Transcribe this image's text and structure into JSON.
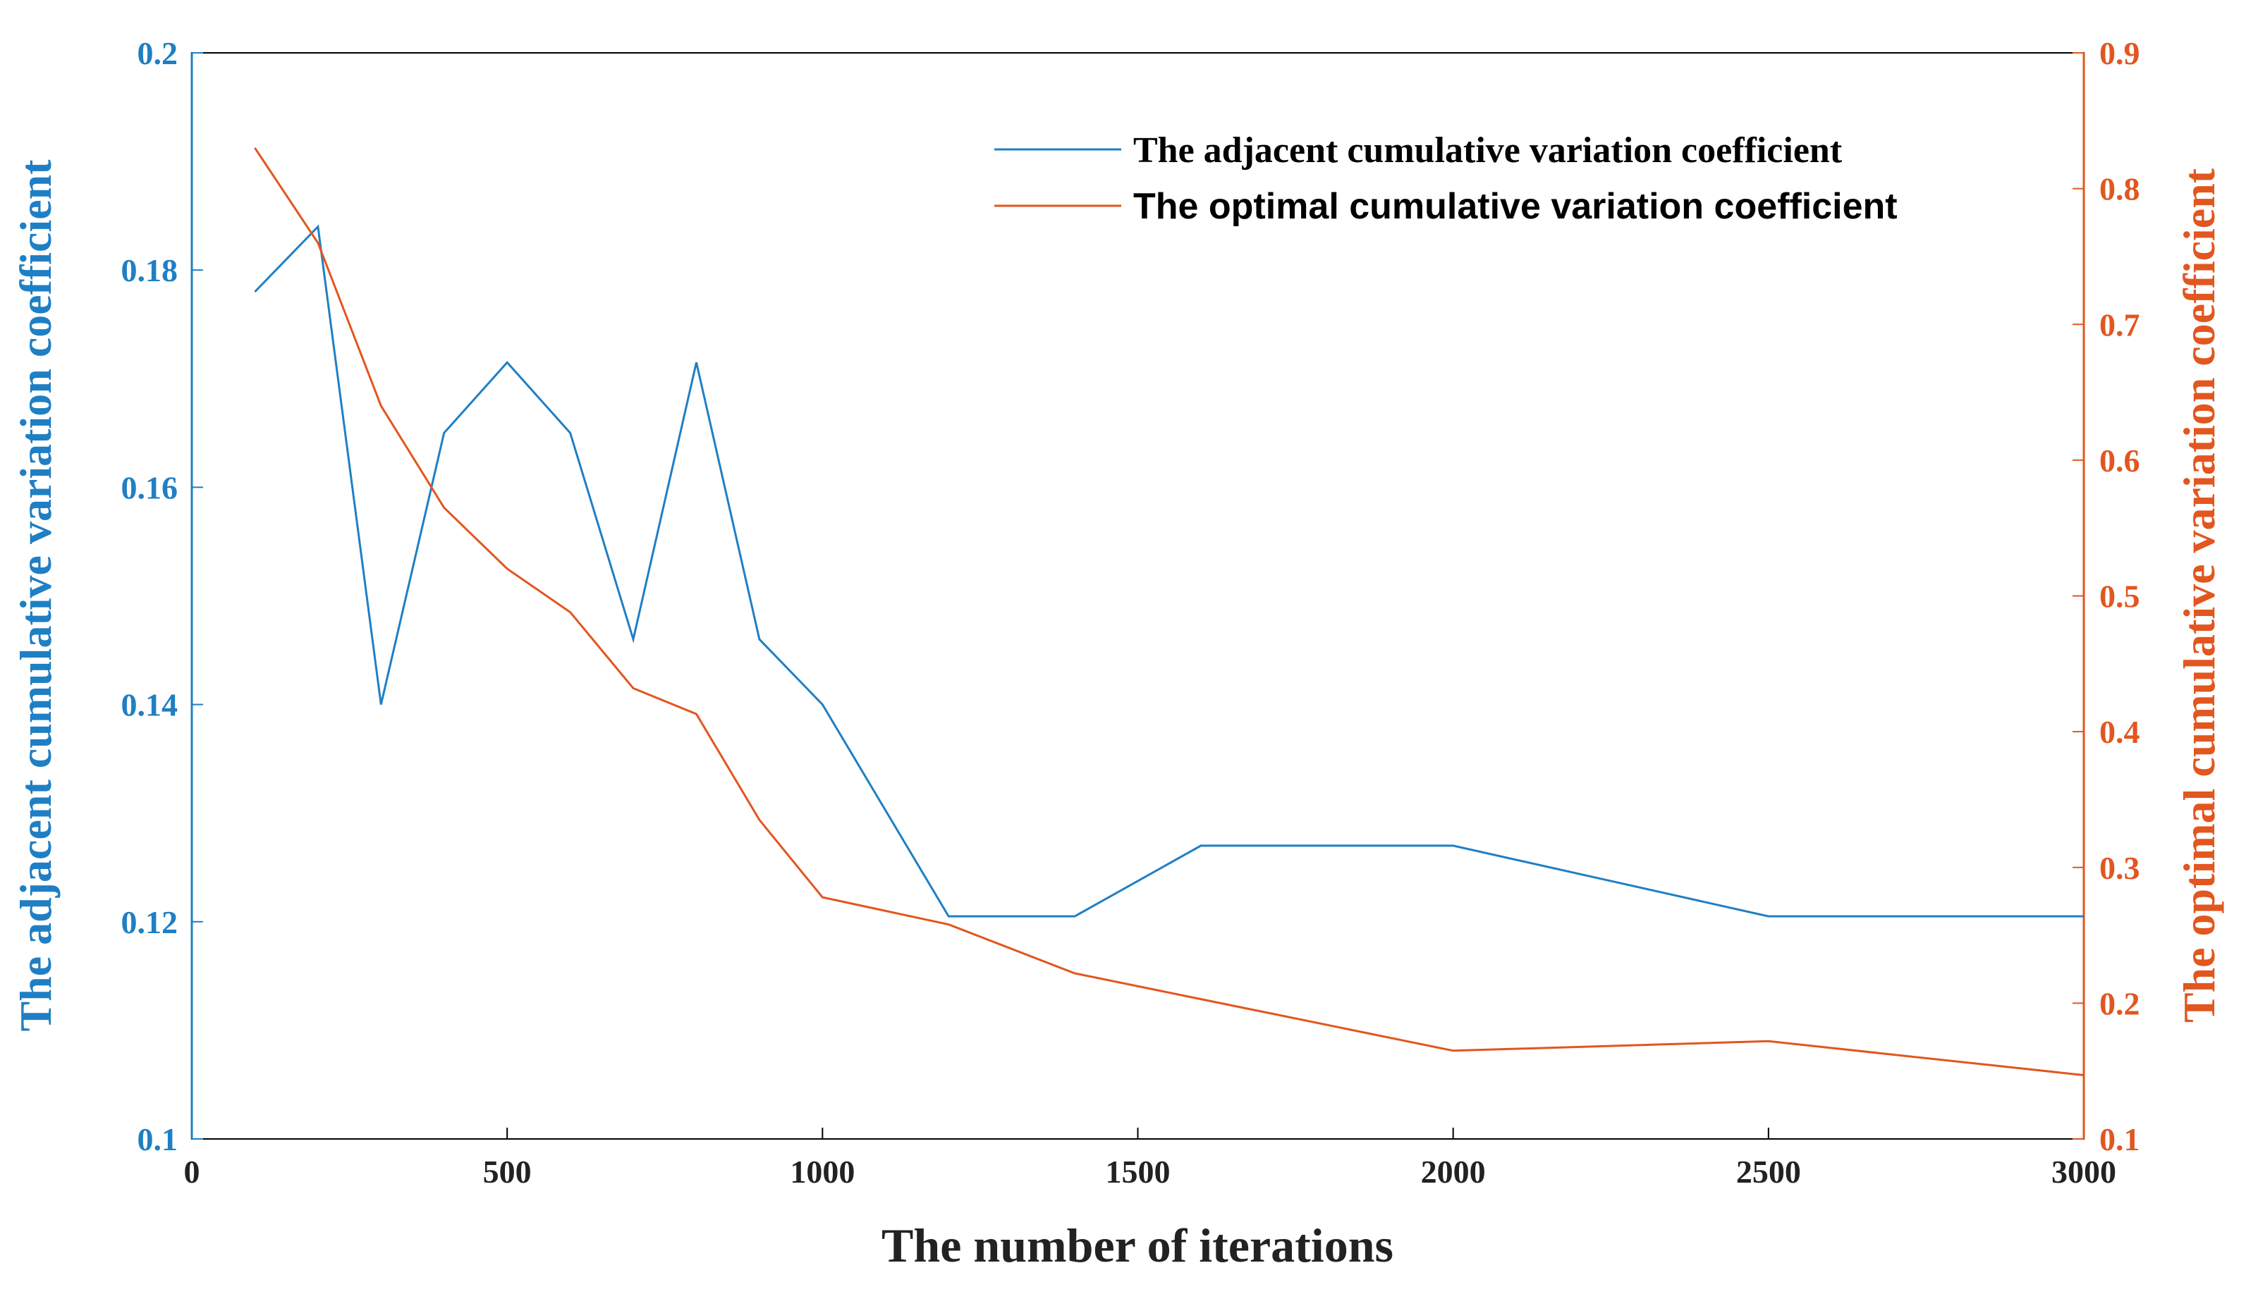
{
  "chart_data": {
    "type": "line",
    "xlabel": "The number of iterations",
    "ylabel_left": "The adjacent cumulative variation coefficient",
    "ylabel_right": "The optimal cumulative variation coefficient",
    "xlim": [
      0,
      3000
    ],
    "ylim_left": [
      0.1,
      0.2
    ],
    "ylim_right": [
      0.1,
      0.9
    ],
    "x_ticks": [
      0,
      500,
      1000,
      1500,
      2000,
      2500,
      3000
    ],
    "y_ticks_left": [
      0.1,
      0.12,
      0.14,
      0.16,
      0.18,
      0.2
    ],
    "y_ticks_right": [
      0.1,
      0.2,
      0.3,
      0.4,
      0.5,
      0.6,
      0.7,
      0.8,
      0.9
    ],
    "grid": false,
    "legend_position": "top-right",
    "colors": {
      "left": "#1f7fc4",
      "right": "#e2561f"
    },
    "series": [
      {
        "name": "The adjacent cumulative variation coefficient",
        "axis": "left",
        "color": "#1f7fc4",
        "x": [
          100,
          200,
          300,
          400,
          500,
          600,
          700,
          800,
          900,
          1000,
          1200,
          1400,
          1600,
          2000,
          2500,
          3000
        ],
        "values": [
          0.178,
          0.184,
          0.14,
          0.165,
          0.1715,
          0.165,
          0.146,
          0.1715,
          0.146,
          0.14,
          0.1205,
          0.1205,
          0.127,
          0.127,
          0.1205,
          0.1205
        ]
      },
      {
        "name": "The optimal cumulative variation coefficient",
        "axis": "right",
        "color": "#e2561f",
        "x": [
          100,
          200,
          300,
          400,
          500,
          600,
          700,
          800,
          900,
          1000,
          1200,
          1400,
          1600,
          2000,
          2500,
          3000
        ],
        "values": [
          0.83,
          0.76,
          0.64,
          0.565,
          0.52,
          0.488,
          0.432,
          0.413,
          0.335,
          0.278,
          0.258,
          0.222,
          0.203,
          0.165,
          0.172,
          0.147
        ]
      }
    ]
  }
}
